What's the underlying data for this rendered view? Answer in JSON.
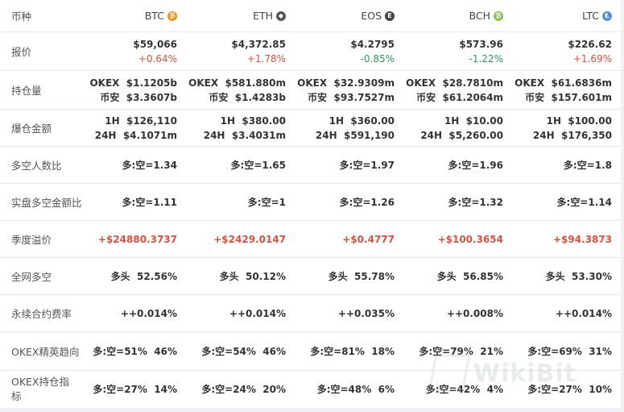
{
  "header": {
    "label": "币种",
    "coins": [
      {
        "name": "BTC",
        "icon": "bitcoin-icon",
        "color": "#f7931a",
        "glyph": "₿"
      },
      {
        "name": "ETH",
        "icon": "ethereum-icon",
        "color": "#555555",
        "glyph": "◆"
      },
      {
        "name": "EOS",
        "icon": "eos-icon",
        "color": "#444444",
        "glyph": "E"
      },
      {
        "name": "BCH",
        "icon": "bitcoin-cash-icon",
        "color": "#8dc351",
        "glyph": "₿"
      },
      {
        "name": "LTC",
        "icon": "litecoin-icon",
        "color": "#5b8fd6",
        "glyph": "Ł"
      }
    ]
  },
  "rows": {
    "price": {
      "label": "报价",
      "values": [
        {
          "price": "$59,066",
          "change": "+0.64%",
          "dir": "up"
        },
        {
          "price": "$4,372.85",
          "change": "+1.78%",
          "dir": "up"
        },
        {
          "price": "$4.2795",
          "change": "-0.85%",
          "dir": "down"
        },
        {
          "price": "$573.96",
          "change": "-1.22%",
          "dir": "down"
        },
        {
          "price": "$226.62",
          "change": "+1.69%",
          "dir": "up"
        }
      ]
    },
    "positions": {
      "label": "持仓量",
      "values": [
        {
          "l1": "OKEX  $1.1205b",
          "l2": "币安  $3.3607b"
        },
        {
          "l1": "OKEX  $581.880m",
          "l2": "币安  $1.4283b"
        },
        {
          "l1": "OKEX  $32.9309m",
          "l2": "币安  $93.7527m"
        },
        {
          "l1": "OKEX  $28.7810m",
          "l2": "币安  $61.2064m"
        },
        {
          "l1": "OKEX  $61.6836m",
          "l2": "币安  $157.601m"
        }
      ]
    },
    "liquidations": {
      "label": "爆仓金额",
      "values": [
        {
          "l1": "1H  $126,110",
          "l2": "24H  $4.1071m"
        },
        {
          "l1": "1H  $380.00",
          "l2": "24H  $3.4031m"
        },
        {
          "l1": "1H  $360.00",
          "l2": "24H  $591,190"
        },
        {
          "l1": "1H  $10.00",
          "l2": "24H  $5,260.00"
        },
        {
          "l1": "1H  $100.00",
          "l2": "24H  $176,350"
        }
      ]
    },
    "longshort_count": {
      "label": "多空人数比",
      "values": [
        "多:空=1.34",
        "多:空=1.65",
        "多:空=1.97",
        "多:空=1.96",
        "多:空=1.8"
      ]
    },
    "longshort_amount": {
      "label": "实盘多空金额比",
      "values": [
        "多:空=1.11",
        "多:空=1",
        "多:空=1.26",
        "多:空=1.32",
        "多:空=1.14"
      ]
    },
    "premium": {
      "label": "季度溢价",
      "values": [
        "+$24880.3737",
        "+$2429.0147",
        "+$0.4777",
        "+$100.3654",
        "+$94.3873"
      ]
    },
    "network": {
      "label": "全网多空",
      "values": [
        "多头  52.56%",
        "多头  50.12%",
        "多头  55.78%",
        "多头  56.85%",
        "多头  53.30%"
      ]
    },
    "funding": {
      "label": "永续合约费率",
      "values": [
        "++0.014%",
        "++0.014%",
        "++0.035%",
        "++0.008%",
        "++0.014%"
      ]
    },
    "elite": {
      "label": "OKEX精英趋向",
      "values": [
        "多:空=51%  46%",
        "多:空=54%  46%",
        "多:空=81%  18%",
        "多:空=79%  21%",
        "多:空=69%  31%"
      ]
    },
    "holding": {
      "label": "OKEX持仓指标",
      "values": [
        "多:空=27%  14%",
        "多:空=24%  20%",
        "多:空=48%  6%",
        "多:空=42%  4%",
        "多:空=27%  10%"
      ]
    }
  },
  "colors": {
    "up": "#e04f3c",
    "down": "#2aa05a"
  },
  "watermark": "WikiBit"
}
